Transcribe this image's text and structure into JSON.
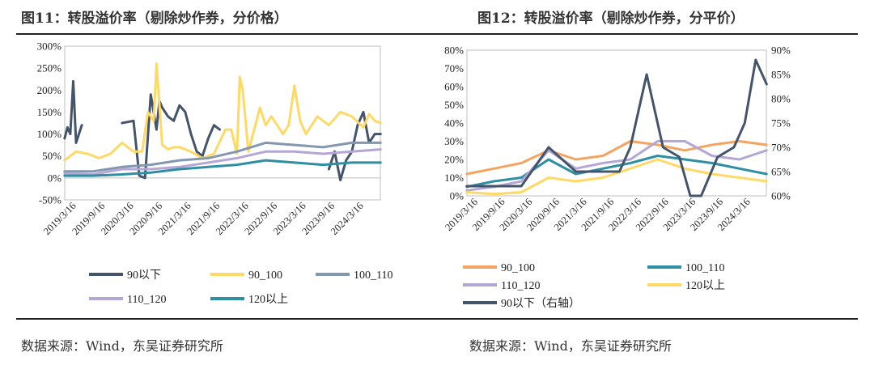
{
  "figure1": {
    "title": "图11：转股溢价率（剔除炒作券，分价格）"
  },
  "figure2": {
    "title": "图12：转股溢价率（剔除炒作券，分平价）"
  },
  "source1": "数据来源：Wind，东吴证券研究所",
  "source2": "数据来源：Wind，东吴证券研究所",
  "chart_data": [
    {
      "type": "line",
      "title": "",
      "x_ticks": [
        "2019/3/16",
        "2019/9/16",
        "2020/3/16",
        "2020/9/16",
        "2021/3/16",
        "2021/9/16",
        "2022/3/16",
        "2022/9/16",
        "2023/3/16",
        "2023/9/16",
        "2024/3/16"
      ],
      "x_range": [
        "2019-01-02",
        "2024-06-30"
      ],
      "y_ticks": [
        "300%",
        "250%",
        "200%",
        "150%",
        "100%",
        "50%",
        "0%",
        "-50%"
      ],
      "ylim": [
        -50,
        300
      ],
      "x_unit": "years",
      "y_unit": "%",
      "legend": [
        "90以下",
        "90_100",
        "100_110",
        "110_120",
        "120以上"
      ],
      "legend_position": "bottom",
      "series": [
        {
          "name": "90以下",
          "color": "#44546a",
          "x": [
            2019.0,
            2019.05,
            2019.1,
            2019.15,
            2019.2,
            2019.3,
            2019.4,
            2019.9,
            2020.0,
            2020.2,
            2020.3,
            2020.4,
            2020.5,
            2020.6,
            2020.65,
            2020.7,
            2020.8,
            2020.9,
            2021.0,
            2021.1,
            2021.2,
            2021.3,
            2021.4,
            2021.5,
            2021.6,
            2021.7,
            2021.8,
            2023.5,
            2023.6,
            2023.7,
            2023.8,
            2023.9,
            2024.0,
            2024.1,
            2024.2,
            2024.3,
            2024.4,
            2024.5
          ],
          "values": [
            90,
            115,
            100,
            220,
            80,
            120,
            null,
            null,
            125,
            130,
            5,
            0,
            190,
            110,
            175,
            160,
            140,
            130,
            165,
            150,
            100,
            60,
            50,
            90,
            120,
            110,
            null,
            null,
            20,
            60,
            -5,
            40,
            60,
            120,
            150,
            80,
            100,
            100
          ]
        },
        {
          "name": "90_100",
          "color": "#ffd966",
          "x": [
            2019.0,
            2019.2,
            2019.4,
            2019.6,
            2019.8,
            2020.0,
            2020.2,
            2020.35,
            2020.45,
            2020.55,
            2020.6,
            2020.7,
            2020.8,
            2020.9,
            2021.0,
            2021.2,
            2021.4,
            2021.6,
            2021.8,
            2021.9,
            2022.0,
            2022.05,
            2022.1,
            2022.2,
            2022.4,
            2022.5,
            2022.6,
            2022.8,
            2022.9,
            2023.0,
            2023.1,
            2023.2,
            2023.4,
            2023.6,
            2023.8,
            2024.0,
            2024.2,
            2024.3,
            2024.4,
            2024.5
          ],
          "values": [
            40,
            60,
            55,
            45,
            55,
            80,
            60,
            60,
            150,
            130,
            260,
            75,
            65,
            70,
            70,
            60,
            45,
            55,
            110,
            110,
            55,
            230,
            200,
            60,
            160,
            120,
            140,
            100,
            120,
            210,
            130,
            100,
            140,
            120,
            150,
            140,
            115,
            145,
            130,
            125
          ]
        },
        {
          "name": "100_110",
          "color": "#8497b0",
          "x": [
            2019.0,
            2019.5,
            2020.0,
            2020.5,
            2021.0,
            2021.5,
            2022.0,
            2022.5,
            2023.0,
            2023.5,
            2024.0,
            2024.5
          ],
          "values": [
            15,
            15,
            25,
            30,
            40,
            45,
            60,
            80,
            75,
            70,
            80,
            80
          ]
        },
        {
          "name": "110_120",
          "color": "#b4a7d6",
          "x": [
            2019.0,
            2019.5,
            2020.0,
            2020.5,
            2021.0,
            2021.5,
            2022.0,
            2022.5,
            2023.0,
            2023.5,
            2024.0,
            2024.5
          ],
          "values": [
            10,
            8,
            20,
            20,
            25,
            35,
            45,
            60,
            60,
            55,
            60,
            65
          ]
        },
        {
          "name": "120以上",
          "color": "#2e8fa3",
          "x": [
            2019.0,
            2019.5,
            2020.0,
            2020.5,
            2021.0,
            2021.5,
            2022.0,
            2022.5,
            2023.0,
            2023.5,
            2024.0,
            2024.5
          ],
          "values": [
            5,
            5,
            8,
            12,
            20,
            25,
            30,
            40,
            35,
            30,
            35,
            35
          ]
        }
      ]
    },
    {
      "type": "line",
      "title": "",
      "x_ticks": [
        "2019/3/16",
        "2019/9/16",
        "2020/3/16",
        "2020/9/16",
        "2021/3/16",
        "2021/9/16",
        "2022/3/16",
        "2022/9/16",
        "2023/3/16",
        "2023/9/16",
        "2024/3/16"
      ],
      "x_range": [
        "2019-01-02",
        "2024-06-30"
      ],
      "y_ticks_left": [
        "80%",
        "70%",
        "60%",
        "50%",
        "40%",
        "30%",
        "20%",
        "10%",
        "0%"
      ],
      "ylim_left": [
        0,
        80
      ],
      "y_ticks_right": [
        "90%",
        "85%",
        "80%",
        "75%",
        "70%",
        "65%",
        "60%"
      ],
      "ylim_right": [
        60,
        90
      ],
      "x_unit": "years",
      "y_unit": "%",
      "legend": [
        "90_100",
        "100_110",
        "110_120",
        "120以上",
        "90以下（右轴）"
      ],
      "legend_position": "bottom",
      "series": [
        {
          "name": "90_100",
          "color": "#f4a460",
          "axis": "left",
          "x": [
            2019.0,
            2019.5,
            2020.0,
            2020.5,
            2021.0,
            2021.5,
            2022.0,
            2022.5,
            2023.0,
            2023.5,
            2024.0,
            2024.5
          ],
          "values": [
            12,
            15,
            18,
            25,
            20,
            22,
            30,
            28,
            25,
            28,
            30,
            28
          ]
        },
        {
          "name": "100_110",
          "color": "#2e8fa3",
          "axis": "left",
          "x": [
            2019.0,
            2019.5,
            2020.0,
            2020.5,
            2021.0,
            2021.5,
            2022.0,
            2022.5,
            2023.0,
            2023.5,
            2024.0,
            2024.5
          ],
          "values": [
            5,
            8,
            10,
            20,
            12,
            15,
            18,
            22,
            20,
            18,
            15,
            12
          ]
        },
        {
          "name": "110_120",
          "color": "#b4a7d6",
          "axis": "left",
          "x": [
            2019.0,
            2019.5,
            2020.0,
            2020.5,
            2021.0,
            2021.5,
            2022.0,
            2022.5,
            2023.0,
            2023.5,
            2024.0,
            2024.5
          ],
          "values": [
            3,
            5,
            8,
            25,
            15,
            18,
            20,
            30,
            30,
            22,
            20,
            25
          ]
        },
        {
          "name": "120以上",
          "color": "#ffd966",
          "axis": "left",
          "x": [
            2019.0,
            2019.5,
            2020.0,
            2020.5,
            2021.0,
            2021.5,
            2022.0,
            2022.5,
            2023.0,
            2023.5,
            2024.0,
            2024.5
          ],
          "values": [
            2,
            1,
            2,
            10,
            8,
            10,
            15,
            20,
            15,
            12,
            10,
            8
          ]
        },
        {
          "name": "90以下（右轴）",
          "color": "#44546a",
          "axis": "right",
          "x": [
            2019.0,
            2020.0,
            2020.5,
            2021.0,
            2021.5,
            2021.8,
            2022.0,
            2022.3,
            2022.6,
            2022.9,
            2023.1,
            2023.3,
            2023.6,
            2023.9,
            2024.1,
            2024.3,
            2024.5
          ],
          "values": [
            62,
            62,
            70,
            65,
            65,
            65,
            70,
            85,
            70,
            68,
            60,
            60,
            68,
            70,
            75,
            88,
            83
          ]
        }
      ]
    }
  ]
}
